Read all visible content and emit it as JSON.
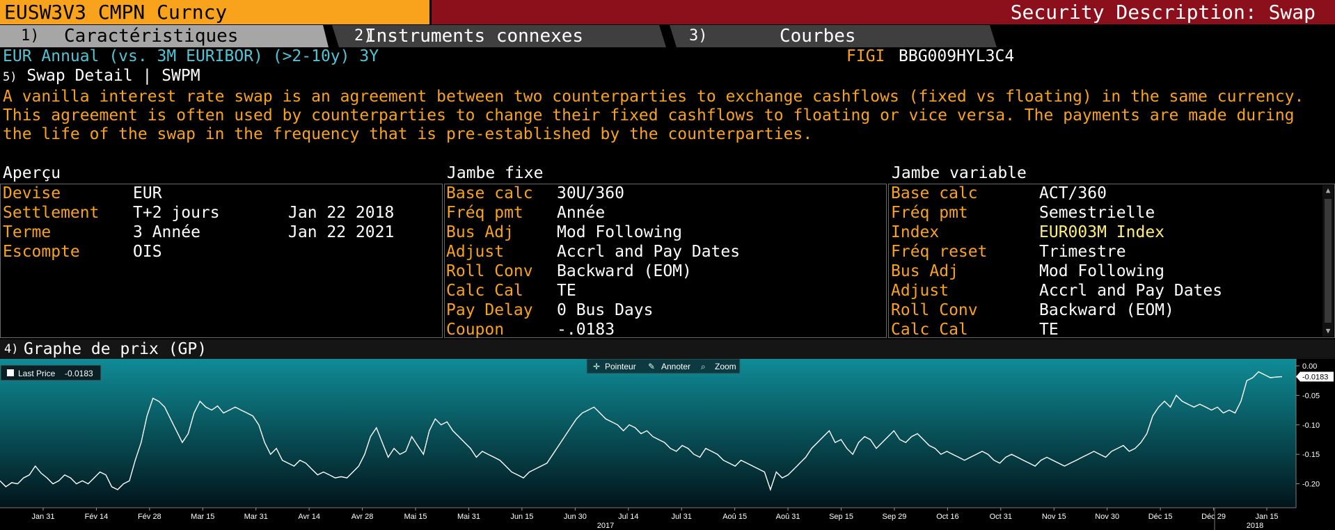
{
  "header": {
    "ticker": "EUSW3V3 CMPN Curncy",
    "title": "Security Description: Swap"
  },
  "tabs": [
    {
      "num": "1)",
      "label": "Caractéristiques"
    },
    {
      "num": "2)",
      "label": "Instruments connexes"
    },
    {
      "num": "3)",
      "label": "Courbes"
    }
  ],
  "security": {
    "name": "EUR Annual (vs. 3M EURIBOR) (>2-10y) 3Y",
    "figi_label": "FIGI",
    "figi_value": "BBG009HYL3C4",
    "action_num": "5)",
    "action_label": "Swap Detail | SWPM",
    "description": "A vanilla interest rate swap is an agreement between two counterparties to exchange cashflows (fixed vs floating) in the same currency. This agreement is often used by counterparties to change their fixed cashflows to floating or vice versa. The payments are made during the life of the swap in the frequency that is pre-established by the counterparties."
  },
  "overview": {
    "title": "Aperçu",
    "rows": [
      {
        "label": "Devise",
        "value": "EUR",
        "date": ""
      },
      {
        "label": "Settlement",
        "value": "T+2 jours",
        "date": "Jan 22 2018"
      },
      {
        "label": "Terme",
        "value": "3 Année",
        "date": "Jan 22 2021"
      },
      {
        "label": "Escompte",
        "value": "OIS",
        "date": ""
      }
    ]
  },
  "fixed_leg": {
    "title": "Jambe fixe",
    "rows": [
      {
        "label": "Base calc",
        "value": "30U/360"
      },
      {
        "label": "Fréq pmt",
        "value": "Année"
      },
      {
        "label": "Bus Adj",
        "value": "Mod Following"
      },
      {
        "label": "Adjust",
        "value": "Accrl and Pay Dates"
      },
      {
        "label": "Roll Conv",
        "value": "Backward (EOM)"
      },
      {
        "label": "Calc Cal",
        "value": "TE"
      },
      {
        "label": "Pay Delay",
        "value": "0 Bus Days"
      },
      {
        "label": "Coupon",
        "value": "-.0183"
      }
    ]
  },
  "floating_leg": {
    "title": "Jambe variable",
    "rows": [
      {
        "label": "Base calc",
        "value": "ACT/360"
      },
      {
        "label": "Fréq pmt",
        "value": "Semestrielle"
      },
      {
        "label": "Index",
        "value": "EUR003M Index"
      },
      {
        "label": "Fréq reset",
        "value": "Trimestre"
      },
      {
        "label": "Bus Adj",
        "value": "Mod Following"
      },
      {
        "label": "Adjust",
        "value": "Accrl and Pay Dates"
      },
      {
        "label": "Roll Conv",
        "value": "Backward (EOM)"
      },
      {
        "label": "Calc Cal",
        "value": "TE"
      }
    ]
  },
  "graph": {
    "num": "4)",
    "title": "Graphe de prix (GP)",
    "legend_label": "Last Price",
    "legend_value": "-0.0183",
    "toolbar": {
      "pointer": "Pointeur",
      "annotate": "Annoter",
      "zoom": "Zoom"
    },
    "colors": {
      "top": "#0f8c96",
      "bottom": "#02141a",
      "line": "#ffffff"
    }
  },
  "chart_data": {
    "type": "line",
    "title": "Last Price",
    "ylim": [
      -0.23,
      0.0
    ],
    "yticks": [
      0.0,
      -0.05,
      -0.1,
      -0.15,
      -0.2
    ],
    "ytick_labels": [
      "0.00",
      "-0.05",
      "-0.10",
      "-0.15",
      "-0.20"
    ],
    "last_value": -0.0183,
    "last_label": "-0.0183",
    "xticks": [
      "Jan 31",
      "Fév 14",
      "Fév 28",
      "Mar 15",
      "Mar 31",
      "Avr 14",
      "Avr 28",
      "Mai 15",
      "Mai 31",
      "Jun 15",
      "Jun 30",
      "Jul 14",
      "Jul 31",
      "Aoû 15",
      "Aoû 31",
      "Sep 15",
      "Sep 29",
      "Oct 16",
      "Oct 31",
      "Nov 15",
      "Nov 30",
      "Déc 15",
      "Déc 29",
      "Jan 15"
    ],
    "year_labels": [
      "2017",
      "2018"
    ],
    "series": [
      {
        "name": "Last Price",
        "values": [
          -0.195,
          -0.205,
          -0.198,
          -0.2,
          -0.19,
          -0.185,
          -0.17,
          -0.182,
          -0.19,
          -0.2,
          -0.195,
          -0.185,
          -0.19,
          -0.2,
          -0.195,
          -0.2,
          -0.19,
          -0.18,
          -0.185,
          -0.205,
          -0.21,
          -0.2,
          -0.195,
          -0.16,
          -0.13,
          -0.085,
          -0.055,
          -0.06,
          -0.07,
          -0.09,
          -0.11,
          -0.13,
          -0.115,
          -0.08,
          -0.06,
          -0.07,
          -0.075,
          -0.068,
          -0.08,
          -0.075,
          -0.07,
          -0.075,
          -0.08,
          -0.085,
          -0.1,
          -0.13,
          -0.15,
          -0.14,
          -0.16,
          -0.165,
          -0.17,
          -0.16,
          -0.165,
          -0.175,
          -0.185,
          -0.18,
          -0.185,
          -0.19,
          -0.188,
          -0.19,
          -0.18,
          -0.17,
          -0.15,
          -0.12,
          -0.105,
          -0.13,
          -0.155,
          -0.14,
          -0.15,
          -0.145,
          -0.12,
          -0.135,
          -0.15,
          -0.11,
          -0.09,
          -0.1,
          -0.095,
          -0.11,
          -0.12,
          -0.13,
          -0.14,
          -0.155,
          -0.145,
          -0.15,
          -0.155,
          -0.16,
          -0.17,
          -0.18,
          -0.185,
          -0.19,
          -0.18,
          -0.175,
          -0.17,
          -0.165,
          -0.15,
          -0.135,
          -0.12,
          -0.105,
          -0.09,
          -0.08,
          -0.075,
          -0.07,
          -0.08,
          -0.09,
          -0.095,
          -0.1,
          -0.11,
          -0.1,
          -0.105,
          -0.115,
          -0.11,
          -0.12,
          -0.125,
          -0.13,
          -0.14,
          -0.145,
          -0.135,
          -0.14,
          -0.15,
          -0.155,
          -0.14,
          -0.145,
          -0.15,
          -0.16,
          -0.165,
          -0.17,
          -0.16,
          -0.165,
          -0.17,
          -0.175,
          -0.18,
          -0.21,
          -0.18,
          -0.19,
          -0.185,
          -0.175,
          -0.165,
          -0.155,
          -0.14,
          -0.13,
          -0.12,
          -0.11,
          -0.13,
          -0.125,
          -0.14,
          -0.15,
          -0.13,
          -0.12,
          -0.125,
          -0.14,
          -0.13,
          -0.12,
          -0.11,
          -0.125,
          -0.13,
          -0.12,
          -0.115,
          -0.125,
          -0.135,
          -0.14,
          -0.15,
          -0.145,
          -0.15,
          -0.155,
          -0.16,
          -0.155,
          -0.15,
          -0.145,
          -0.15,
          -0.16,
          -0.165,
          -0.155,
          -0.15,
          -0.155,
          -0.16,
          -0.165,
          -0.17,
          -0.16,
          -0.155,
          -0.16,
          -0.165,
          -0.17,
          -0.165,
          -0.16,
          -0.155,
          -0.15,
          -0.145,
          -0.15,
          -0.155,
          -0.145,
          -0.14,
          -0.135,
          -0.145,
          -0.14,
          -0.13,
          -0.115,
          -0.085,
          -0.07,
          -0.06,
          -0.07,
          -0.05,
          -0.06,
          -0.065,
          -0.07,
          -0.065,
          -0.07,
          -0.075,
          -0.07,
          -0.08,
          -0.075,
          -0.08,
          -0.06,
          -0.025,
          -0.02,
          -0.01,
          -0.015,
          -0.02,
          -0.019,
          -0.0183
        ]
      }
    ]
  }
}
